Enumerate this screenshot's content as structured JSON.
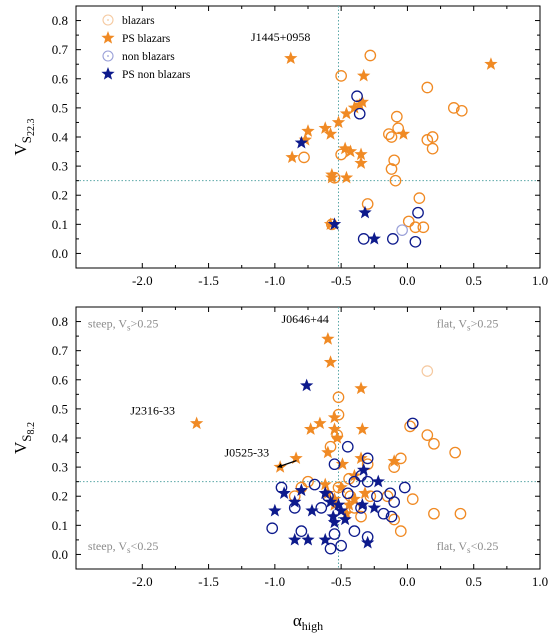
{
  "colors": {
    "blazar": "#f08a24",
    "nonblazar": "#0d1a8c",
    "guide": "#5aa7a7",
    "lightblazar": "#f5c9a0",
    "lightnonblazar": "#9aa0d8",
    "gray_text": "#8c8c8c"
  },
  "chart_data": [
    {
      "type": "scatter",
      "ylabel_main": "V",
      "ylabel_sub": "S",
      "ylabel_subsub": "22.3",
      "xlim": [
        -2.5,
        1.0
      ],
      "ylim": [
        -0.05,
        0.85
      ],
      "xticks": [
        "-2.0",
        "-1.5",
        "-1.0",
        "-0.5",
        "0.0",
        "0.5",
        "1.0"
      ],
      "xtick_values": [
        -2.0,
        -1.5,
        -1.0,
        -0.5,
        0.0,
        0.5,
        1.0
      ],
      "yticks": [
        "0.0",
        "0.1",
        "0.2",
        "0.3",
        "0.4",
        "0.5",
        "0.6",
        "0.7",
        "0.8"
      ],
      "ytick_values": [
        0.0,
        0.1,
        0.2,
        0.3,
        0.4,
        0.5,
        0.6,
        0.7,
        0.8
      ],
      "guides": {
        "x": -0.52,
        "y": 0.25
      },
      "legend": {
        "placement": "top-left",
        "entries": [
          {
            "label": "blazars",
            "marker": "circle-dot",
            "color": "lightblazar"
          },
          {
            "label": "PS blazars",
            "marker": "star",
            "color": "blazar"
          },
          {
            "label": "non blazars",
            "marker": "circle-dot",
            "color": "lightnonblazar"
          },
          {
            "label": "PS non blazars",
            "marker": "star",
            "color": "nonblazar"
          }
        ]
      },
      "annotations": [
        {
          "text": "J1445+0958",
          "x": -1.18,
          "y": 0.73
        }
      ],
      "series": [
        {
          "kind": "blazar-circle",
          "points": [
            [
              -0.28,
              0.68
            ],
            [
              -0.5,
              0.61
            ],
            [
              0.15,
              0.57
            ],
            [
              0.35,
              0.5
            ],
            [
              0.41,
              0.49
            ],
            [
              -0.08,
              0.47
            ],
            [
              -0.07,
              0.43
            ],
            [
              -0.14,
              0.41
            ],
            [
              -0.12,
              0.4
            ],
            [
              0.19,
              0.4
            ],
            [
              0.15,
              0.39
            ],
            [
              0.19,
              0.36
            ],
            [
              -0.5,
              0.34
            ],
            [
              -0.78,
              0.33
            ],
            [
              -0.1,
              0.32
            ],
            [
              -0.12,
              0.29
            ],
            [
              -0.09,
              0.25
            ],
            [
              0.09,
              0.19
            ],
            [
              -0.3,
              0.17
            ],
            [
              -0.55,
              0.26
            ],
            [
              -0.57,
              0.1
            ],
            [
              0.01,
              0.11
            ],
            [
              0.06,
              0.09
            ],
            [
              0.12,
              0.09
            ]
          ]
        },
        {
          "kind": "blazar-star",
          "points": [
            [
              -0.88,
              0.67
            ],
            [
              0.63,
              0.65
            ],
            [
              -0.33,
              0.61
            ],
            [
              -0.34,
              0.52
            ],
            [
              -0.36,
              0.51
            ],
            [
              -0.4,
              0.5
            ],
            [
              -0.46,
              0.48
            ],
            [
              -0.52,
              0.45
            ],
            [
              -0.62,
              0.43
            ],
            [
              -0.58,
              0.41
            ],
            [
              -0.75,
              0.42
            ],
            [
              -0.77,
              0.39
            ],
            [
              -0.87,
              0.33
            ],
            [
              -0.03,
              0.41
            ],
            [
              -0.47,
              0.36
            ],
            [
              -0.43,
              0.35
            ],
            [
              -0.35,
              0.34
            ],
            [
              -0.35,
              0.31
            ],
            [
              -0.57,
              0.27
            ],
            [
              -0.57,
              0.26
            ],
            [
              -0.46,
              0.26
            ],
            [
              -0.58,
              0.1
            ]
          ]
        },
        {
          "kind": "nonblazar-circle",
          "points": [
            [
              -0.38,
              0.54
            ],
            [
              -0.36,
              0.48
            ],
            [
              0.08,
              0.14
            ],
            [
              -0.33,
              0.05
            ],
            [
              -0.11,
              0.05
            ],
            [
              0.06,
              0.04
            ]
          ]
        },
        {
          "kind": "nonblazar-circle-light",
          "points": [
            [
              -0.04,
              0.08
            ]
          ]
        },
        {
          "kind": "nonblazar-star",
          "points": [
            [
              -0.8,
              0.38
            ],
            [
              -0.32,
              0.14
            ],
            [
              -0.55,
              0.1
            ],
            [
              -0.25,
              0.05
            ]
          ]
        }
      ]
    },
    {
      "type": "scatter",
      "ylabel_main": "V",
      "ylabel_sub": "S",
      "ylabel_subsub": "8.2",
      "xlabel_main": "α",
      "xlabel_sub": "high",
      "xlim": [
        -2.5,
        1.0
      ],
      "ylim": [
        -0.05,
        0.85
      ],
      "xticks": [
        "-2.0",
        "-1.5",
        "-1.0",
        "-0.5",
        "0.0",
        "0.5",
        "1.0"
      ],
      "xtick_values": [
        -2.0,
        -1.5,
        -1.0,
        -0.5,
        0.0,
        0.5,
        1.0
      ],
      "yticks": [
        "0.0",
        "0.1",
        "0.2",
        "0.3",
        "0.4",
        "0.5",
        "0.6",
        "0.7",
        "0.8"
      ],
      "ytick_values": [
        0.0,
        0.1,
        0.2,
        0.3,
        0.4,
        0.5,
        0.6,
        0.7,
        0.8
      ],
      "guides": {
        "x": -0.52,
        "y": 0.25
      },
      "quadrant_labels": [
        {
          "main": "steep, V",
          "sub": "s",
          "tail": ">0.25",
          "x": -2.41,
          "y": 0.78
        },
        {
          "main": "flat, V",
          "sub": "s",
          "tail": ">0.25",
          "x": 0.22,
          "y": 0.78
        },
        {
          "main": "steep, V",
          "sub": "s",
          "tail": "<0.25",
          "x": -2.41,
          "y": 0.015
        },
        {
          "main": "flat, V",
          "sub": "s",
          "tail": "<0.25",
          "x": 0.22,
          "y": 0.015
        }
      ],
      "annotations": [
        {
          "text": "J0646+44",
          "x": -0.95,
          "y": 0.795
        },
        {
          "text": "J2316-33",
          "x": -2.09,
          "y": 0.48
        },
        {
          "text": "J0525-33",
          "x": -1.38,
          "y": 0.336,
          "arrow_to": [
            -0.98,
            0.3
          ]
        }
      ],
      "series": [
        {
          "kind": "blazar-circle",
          "points": [
            [
              -0.52,
              0.54
            ],
            [
              -0.52,
              0.48
            ],
            [
              -0.53,
              0.41
            ],
            [
              -0.58,
              0.37
            ],
            [
              0.02,
              0.44
            ],
            [
              0.15,
              0.41
            ],
            [
              0.2,
              0.38
            ],
            [
              0.36,
              0.35
            ],
            [
              -0.05,
              0.33
            ],
            [
              -0.1,
              0.3
            ],
            [
              -0.3,
              0.31
            ],
            [
              -0.44,
              0.26
            ],
            [
              -0.52,
              0.23
            ],
            [
              -0.75,
              0.25
            ],
            [
              -0.8,
              0.23
            ],
            [
              -0.85,
              0.2
            ],
            [
              -0.43,
              0.2
            ],
            [
              -0.28,
              0.2
            ],
            [
              -0.15,
              0.2
            ],
            [
              0.04,
              0.19
            ],
            [
              0.2,
              0.14
            ],
            [
              0.4,
              0.14
            ],
            [
              -0.1,
              0.12
            ],
            [
              -0.05,
              0.08
            ],
            [
              -0.4,
              0.16
            ],
            [
              -0.35,
              0.13
            ]
          ]
        },
        {
          "kind": "blazar-circle-light",
          "points": [
            [
              0.15,
              0.63
            ]
          ]
        },
        {
          "kind": "blazar-star",
          "points": [
            [
              -0.6,
              0.74
            ],
            [
              -0.58,
              0.66
            ],
            [
              -1.59,
              0.45
            ],
            [
              -0.35,
              0.57
            ],
            [
              -0.55,
              0.47
            ],
            [
              -0.55,
              0.43
            ],
            [
              -0.34,
              0.43
            ],
            [
              -0.53,
              0.4
            ],
            [
              -0.73,
              0.43
            ],
            [
              -0.66,
              0.45
            ],
            [
              -0.6,
              0.35
            ],
            [
              -0.84,
              0.33
            ],
            [
              -0.96,
              0.3
            ],
            [
              -0.35,
              0.33
            ],
            [
              -0.49,
              0.31
            ],
            [
              -0.5,
              0.23
            ],
            [
              -0.4,
              0.27
            ],
            [
              -0.32,
              0.21
            ],
            [
              -0.4,
              0.19
            ],
            [
              -0.55,
              0.19
            ],
            [
              -0.62,
              0.24
            ],
            [
              -0.6,
              0.21
            ],
            [
              -0.55,
              0.17
            ],
            [
              -0.1,
              0.32
            ],
            [
              -0.46,
              0.14
            ],
            [
              -0.44,
              0.17
            ]
          ]
        },
        {
          "kind": "nonblazar-circle",
          "points": [
            [
              0.04,
              0.45
            ],
            [
              -0.45,
              0.37
            ],
            [
              -0.3,
              0.33
            ],
            [
              -0.55,
              0.31
            ],
            [
              -0.35,
              0.27
            ],
            [
              -0.4,
              0.25
            ],
            [
              -0.3,
              0.25
            ],
            [
              -0.7,
              0.24
            ],
            [
              -0.95,
              0.23
            ],
            [
              -0.6,
              0.2
            ],
            [
              -0.45,
              0.21
            ],
            [
              -0.23,
              0.2
            ],
            [
              -0.13,
              0.21
            ],
            [
              -0.02,
              0.23
            ],
            [
              -0.85,
              0.16
            ],
            [
              -0.65,
              0.16
            ],
            [
              -0.35,
              0.16
            ],
            [
              -0.18,
              0.14
            ],
            [
              -0.12,
              0.13
            ],
            [
              -0.1,
              0.18
            ],
            [
              -1.02,
              0.09
            ],
            [
              -0.8,
              0.08
            ],
            [
              -0.55,
              0.07
            ],
            [
              -0.4,
              0.08
            ],
            [
              -0.5,
              0.03
            ],
            [
              -0.58,
              0.02
            ],
            [
              -0.3,
              0.06
            ]
          ]
        },
        {
          "kind": "nonblazar-star",
          "points": [
            [
              -0.76,
              0.58
            ],
            [
              -0.33,
              0.29
            ],
            [
              -0.22,
              0.25
            ],
            [
              -0.93,
              0.21
            ],
            [
              -0.8,
              0.22
            ],
            [
              -0.62,
              0.21
            ],
            [
              -0.58,
              0.18
            ],
            [
              -0.52,
              0.17
            ],
            [
              -0.5,
              0.15
            ],
            [
              -0.56,
              0.13
            ],
            [
              -0.72,
              0.15
            ],
            [
              -0.47,
              0.12
            ],
            [
              -0.85,
              0.18
            ],
            [
              -0.34,
              0.17
            ],
            [
              -0.25,
              0.16
            ],
            [
              -1.0,
              0.15
            ],
            [
              -0.85,
              0.05
            ],
            [
              -0.75,
              0.05
            ],
            [
              -0.62,
              0.05
            ],
            [
              -0.3,
              0.04
            ],
            [
              -0.55,
              0.11
            ]
          ]
        }
      ]
    }
  ]
}
